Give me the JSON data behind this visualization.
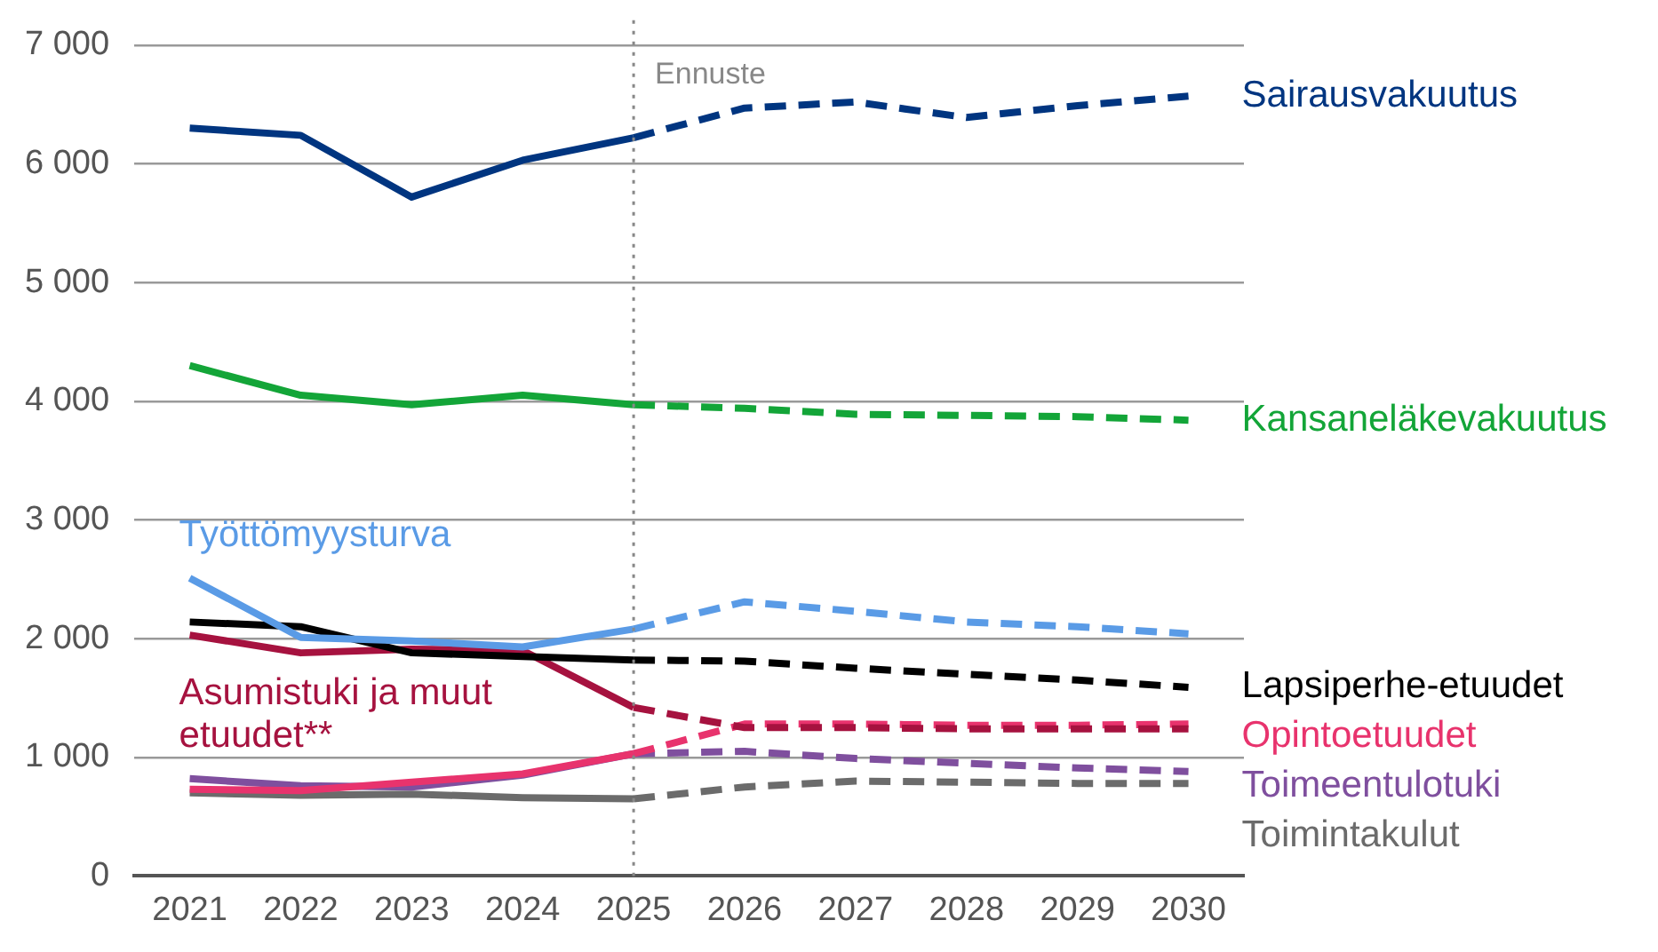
{
  "chart_data": {
    "type": "line",
    "categories": [
      "2021",
      "2022",
      "2023",
      "2024",
      "2025",
      "2026",
      "2027",
      "2028",
      "2029",
      "2030"
    ],
    "ylim": [
      0,
      7000
    ],
    "yticks": [
      {
        "value": 0,
        "label": "0"
      },
      {
        "value": 1000,
        "label": "1 000"
      },
      {
        "value": 2000,
        "label": "2 000"
      },
      {
        "value": 3000,
        "label": "3 000"
      },
      {
        "value": 4000,
        "label": "4 000"
      },
      {
        "value": 5000,
        "label": "5 000"
      },
      {
        "value": 6000,
        "label": "6 000"
      },
      {
        "value": 7000,
        "label": "7 000"
      }
    ],
    "grid": "y",
    "legend": false,
    "marker": "none",
    "ref_lines": [
      {
        "axis": "x",
        "value": "2025",
        "label": "Ennuste",
        "color": "#888888",
        "line_style": "dotted"
      }
    ],
    "series": [
      {
        "color": "#003580",
        "line_style": "solid",
        "values": [
          6300,
          6240,
          5720,
          6030,
          6220,
          null,
          null,
          null,
          null,
          null
        ]
      },
      {
        "name": "Sairausvakuutus",
        "color": "#003580",
        "line_style": "dashed",
        "values": [
          null,
          null,
          null,
          null,
          6220,
          6470,
          6520,
          6390,
          6490,
          6570
        ]
      },
      {
        "color": "#13a538",
        "line_style": "solid",
        "values": [
          4300,
          4050,
          3970,
          4050,
          3970,
          null,
          null,
          null,
          null,
          null
        ]
      },
      {
        "name": "Kansaneläkevakuutus",
        "color": "#13a538",
        "line_style": "dashed",
        "values": [
          null,
          null,
          null,
          null,
          3970,
          3940,
          3890,
          3880,
          3870,
          3840
        ]
      },
      {
        "name": "Työttömyysturva",
        "color": "#5a9be6",
        "line_style": "solid",
        "values": [
          2510,
          2010,
          1980,
          1930,
          2080,
          null,
          null,
          null,
          null,
          null
        ]
      },
      {
        "color": "#5a9be6",
        "line_style": "dashed",
        "values": [
          null,
          null,
          null,
          null,
          2080,
          2310,
          2230,
          2140,
          2100,
          2040
        ]
      },
      {
        "color": "#000000",
        "line_style": "solid",
        "values": [
          2140,
          2100,
          1880,
          1850,
          1820,
          null,
          null,
          null,
          null,
          null
        ]
      },
      {
        "name": "Lapsiperhe-etuudet",
        "color": "#000000",
        "line_style": "dashed",
        "values": [
          null,
          null,
          null,
          null,
          1820,
          1810,
          1750,
          1700,
          1650,
          1590
        ]
      },
      {
        "name": "Asumistuki ja muut etuudet**",
        "color": "#a6123f",
        "line_style": "solid",
        "values": [
          2030,
          1880,
          1910,
          1900,
          1420,
          null,
          null,
          null,
          null,
          null
        ]
      },
      {
        "color": "#a6123f",
        "line_style": "dashed",
        "values": [
          null,
          null,
          null,
          null,
          1420,
          1250,
          1250,
          1240,
          1240,
          1240
        ]
      },
      {
        "color": "#e8336d",
        "line_style": "solid",
        "values": [
          730,
          720,
          790,
          860,
          1030,
          null,
          null,
          null,
          null,
          null
        ]
      },
      {
        "name": "Opintoetuudet",
        "color": "#e8336d",
        "line_style": "dashed",
        "values": [
          null,
          null,
          null,
          null,
          1030,
          1280,
          1280,
          1270,
          1270,
          1280
        ]
      },
      {
        "color": "#7f4f9e",
        "line_style": "solid",
        "values": [
          820,
          760,
          750,
          850,
          1030,
          null,
          null,
          null,
          null,
          null
        ]
      },
      {
        "name": "Toimeentulotuki",
        "color": "#7f4f9e",
        "line_style": "dashed",
        "values": [
          null,
          null,
          null,
          null,
          1030,
          1050,
          990,
          950,
          910,
          880
        ]
      },
      {
        "color": "#6b6b6b",
        "line_style": "solid",
        "values": [
          700,
          680,
          690,
          660,
          650,
          null,
          null,
          null,
          null,
          null
        ]
      },
      {
        "name": "Toimintakulut",
        "color": "#6b6b6b",
        "line_style": "dashed",
        "values": [
          null,
          null,
          null,
          null,
          650,
          750,
          800,
          790,
          780,
          780
        ]
      }
    ]
  }
}
